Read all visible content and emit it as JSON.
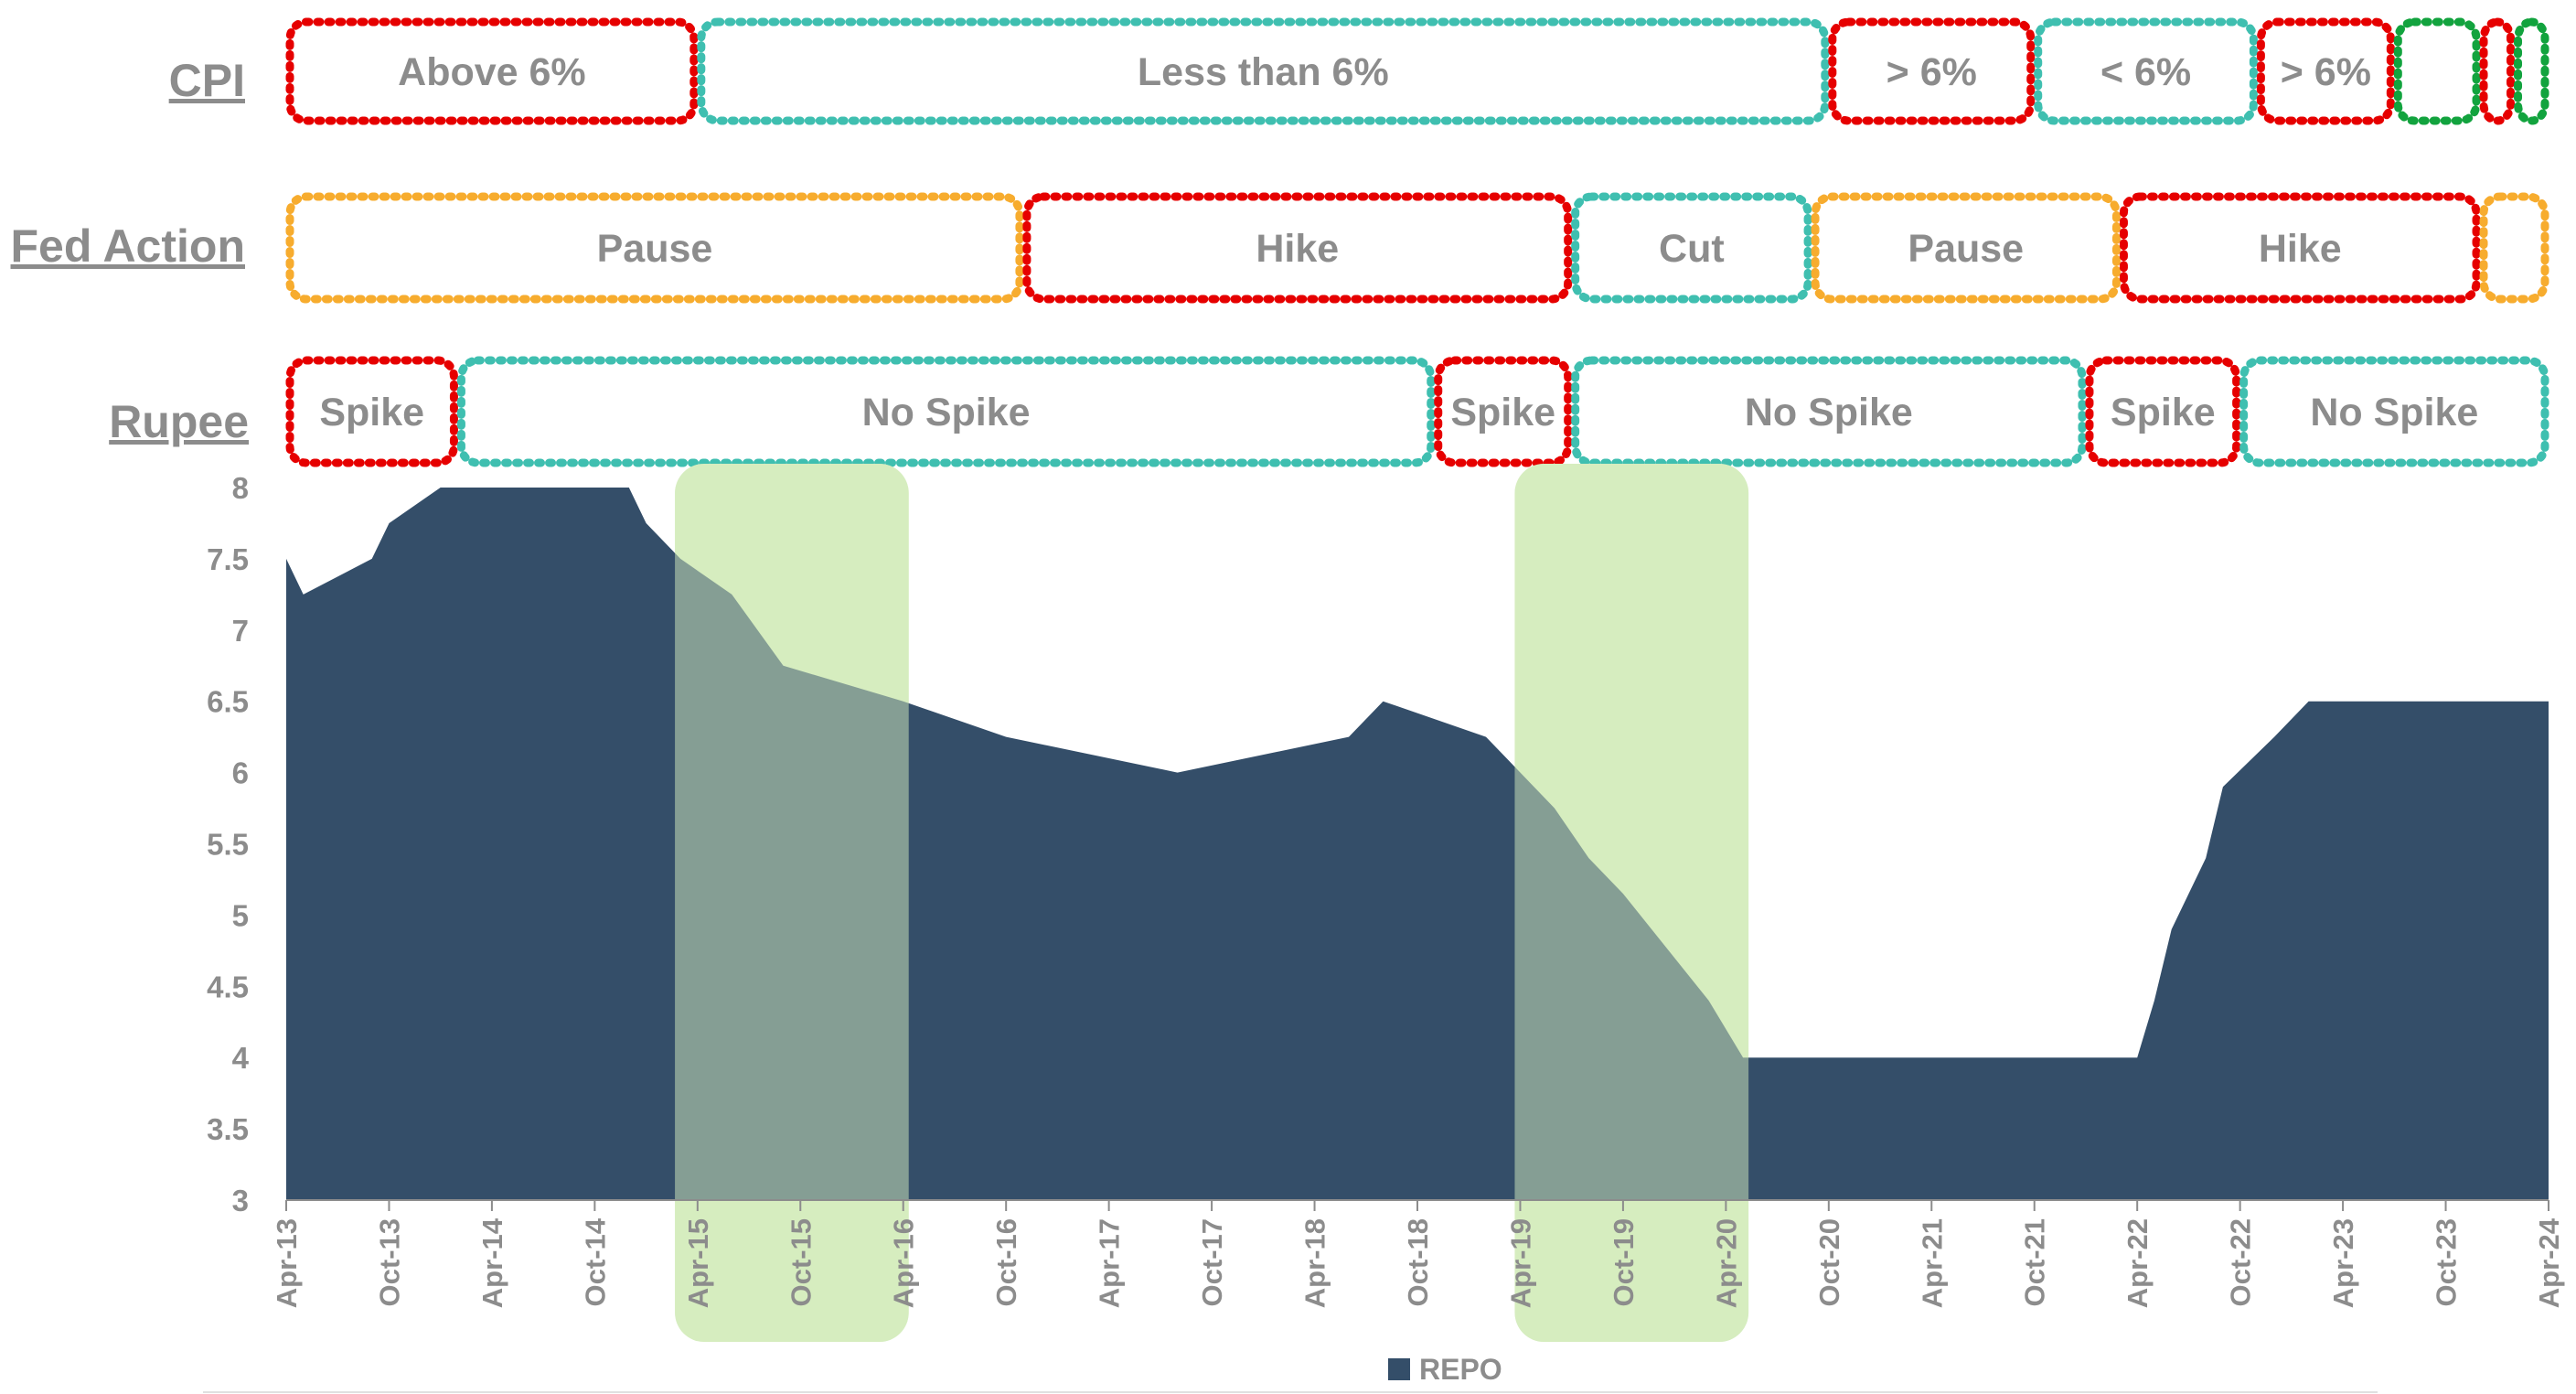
{
  "colors": {
    "repo": "#344e69",
    "highlight": "#d6edbf",
    "red": "#e60000",
    "teal": "#3fbfb0",
    "orange": "#f7ac2e",
    "green": "#12a33e",
    "axis": "#8c8c8c"
  },
  "rows": [
    {
      "label": "CPI",
      "segments": [
        {
          "text": "Above 6%",
          "color": "red",
          "start": "Apr-13",
          "end": "Apr-15"
        },
        {
          "text": "Less than 6%",
          "color": "teal",
          "start": "Apr-15",
          "end": "Oct-20"
        },
        {
          "text": "> 6%",
          "color": "red",
          "start": "Oct-20",
          "end": "Oct-21"
        },
        {
          "text": "< 6%",
          "color": "teal",
          "start": "Oct-21",
          "end": "Nov-22"
        },
        {
          "text": "> 6%",
          "color": "red",
          "start": "Nov-22",
          "end": "Jul-23"
        },
        {
          "text": "",
          "color": "green",
          "start": "Jul-23",
          "end": "Dec-23"
        },
        {
          "text": "",
          "color": "red",
          "start": "Dec-23",
          "end": "Feb-24"
        },
        {
          "text": "",
          "color": "green",
          "start": "Feb-24",
          "end": "Apr-24"
        }
      ]
    },
    {
      "label": "Fed Action",
      "segments": [
        {
          "text": "Pause",
          "color": "orange",
          "start": "Apr-13",
          "end": "Nov-16"
        },
        {
          "text": "Hike",
          "color": "red",
          "start": "Nov-16",
          "end": "Jul-19"
        },
        {
          "text": "Cut",
          "color": "teal",
          "start": "Jul-19",
          "end": "Sep-20"
        },
        {
          "text": "Pause",
          "color": "orange",
          "start": "Sep-20",
          "end": "Mar-22"
        },
        {
          "text": "Hike",
          "color": "red",
          "start": "Mar-22",
          "end": "Dec-23"
        },
        {
          "text": "",
          "color": "orange",
          "start": "Dec-23",
          "end": "Apr-24"
        }
      ]
    },
    {
      "label": "Rupee",
      "segments": [
        {
          "text": "Spike",
          "color": "red",
          "start": "Apr-13",
          "end": "Feb-14"
        },
        {
          "text": "No Spike",
          "color": "teal",
          "start": "Feb-14",
          "end": "Nov-18"
        },
        {
          "text": "Spike",
          "color": "red",
          "start": "Nov-18",
          "end": "Jul-19"
        },
        {
          "text": "No Spike",
          "color": "teal",
          "start": "Jul-19",
          "end": "Jan-22"
        },
        {
          "text": "Spike",
          "color": "red",
          "start": "Jan-22",
          "end": "Oct-22"
        },
        {
          "text": "No Spike",
          "color": "teal",
          "start": "Oct-22",
          "end": "Apr-24"
        }
      ]
    }
  ],
  "chart_data": {
    "type": "area",
    "title": "",
    "xlabel": "",
    "ylabel": "",
    "ylim": [
      3,
      8
    ],
    "yticks": [
      "8",
      "7.5",
      "7",
      "6.5",
      "6",
      "5.5",
      "5",
      "4.5",
      "4",
      "3.5",
      "3"
    ],
    "xticks": [
      "Apr-13",
      "Oct-13",
      "Apr-14",
      "Oct-14",
      "Apr-15",
      "Oct-15",
      "Apr-16",
      "Oct-16",
      "Apr-17",
      "Oct-17",
      "Apr-18",
      "Oct-18",
      "Apr-19",
      "Oct-19",
      "Apr-20",
      "Oct-20",
      "Apr-21",
      "Oct-21",
      "Apr-22",
      "Oct-22",
      "Apr-23",
      "Oct-23",
      "Apr-24"
    ],
    "series": [
      {
        "name": "REPO",
        "points": [
          {
            "x": "Apr-13",
            "y": 7.5
          },
          {
            "x": "May-13",
            "y": 7.25
          },
          {
            "x": "Sep-13",
            "y": 7.5
          },
          {
            "x": "Oct-13",
            "y": 7.75
          },
          {
            "x": "Jan-14",
            "y": 8.0
          },
          {
            "x": "Dec-14",
            "y": 8.0
          },
          {
            "x": "Jan-15",
            "y": 7.75
          },
          {
            "x": "Mar-15",
            "y": 7.5
          },
          {
            "x": "Jun-15",
            "y": 7.25
          },
          {
            "x": "Sep-15",
            "y": 6.75
          },
          {
            "x": "Apr-16",
            "y": 6.5
          },
          {
            "x": "Oct-16",
            "y": 6.25
          },
          {
            "x": "Aug-17",
            "y": 6.0
          },
          {
            "x": "Jun-18",
            "y": 6.25
          },
          {
            "x": "Aug-18",
            "y": 6.5
          },
          {
            "x": "Feb-19",
            "y": 6.25
          },
          {
            "x": "Apr-19",
            "y": 6.0
          },
          {
            "x": "Jun-19",
            "y": 5.75
          },
          {
            "x": "Aug-19",
            "y": 5.4
          },
          {
            "x": "Oct-19",
            "y": 5.15
          },
          {
            "x": "Mar-20",
            "y": 4.4
          },
          {
            "x": "May-20",
            "y": 4.0
          },
          {
            "x": "Apr-22",
            "y": 4.0
          },
          {
            "x": "May-22",
            "y": 4.4
          },
          {
            "x": "Jun-22",
            "y": 4.9
          },
          {
            "x": "Aug-22",
            "y": 5.4
          },
          {
            "x": "Sep-22",
            "y": 5.9
          },
          {
            "x": "Dec-22",
            "y": 6.25
          },
          {
            "x": "Feb-23",
            "y": 6.5
          },
          {
            "x": "Apr-24",
            "y": 6.5
          }
        ]
      }
    ],
    "highlights": [
      {
        "start": "Mar-15",
        "end": "Apr-16"
      },
      {
        "start": "Apr-19",
        "end": "May-20"
      }
    ],
    "legend": {
      "label": "REPO",
      "position": "bottom-center"
    }
  }
}
